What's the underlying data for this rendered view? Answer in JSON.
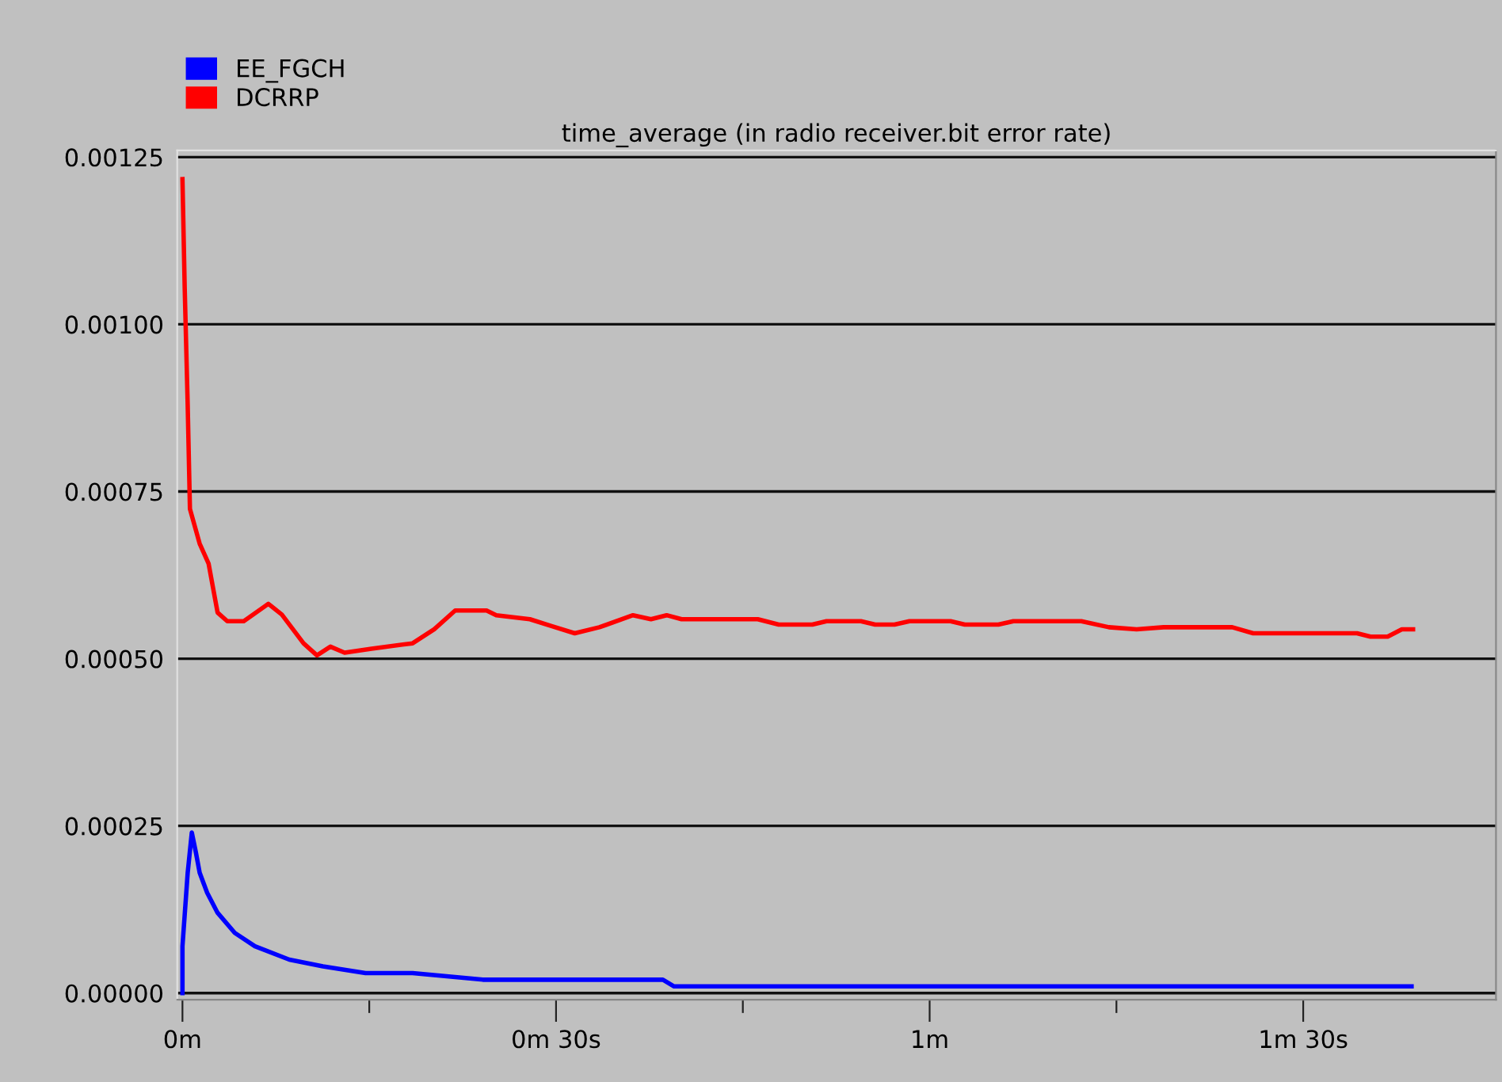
{
  "chart_data": {
    "type": "line",
    "title": "time_average (in radio receiver.bit error rate)",
    "xlim": [
      -0.007,
      1.758
    ],
    "ylim": [
      -1e-05,
      0.00126
    ],
    "xticks": [
      {
        "value": 0,
        "label": "0m"
      },
      {
        "value": 0.25,
        "label": null
      },
      {
        "value": 0.5,
        "label": "0m 30s"
      },
      {
        "value": 0.75,
        "label": null
      },
      {
        "value": 1,
        "label": "1m"
      },
      {
        "value": 1.25,
        "label": null
      },
      {
        "value": 1.5,
        "label": "1m 30s"
      }
    ],
    "yticks": [
      {
        "value": 0,
        "label": "0.00000"
      },
      {
        "value": 0.00025,
        "label": "0.00025"
      },
      {
        "value": 0.0005,
        "label": "0.00050"
      },
      {
        "value": 0.00075,
        "label": "0.00075"
      },
      {
        "value": 0.001,
        "label": "0.00100"
      },
      {
        "value": 0.00125,
        "label": "0.00125"
      }
    ],
    "grid": "y",
    "legend": "top left",
    "marker": "none",
    "line_style": "solid",
    "series": [
      {
        "name": "EE_FGCH",
        "color": "#0000ff",
        "x": [
          0,
          0,
          0.007,
          0.0125,
          0.018,
          0.023,
          0.033,
          0.047,
          0.07,
          0.097,
          0.143,
          0.188,
          0.245,
          0.308,
          0.402,
          0.493,
          0.643,
          0.658,
          0.982,
          1.0,
          1.645
        ],
        "values": [
          0,
          7e-05,
          0.00018,
          0.00024,
          0.00021,
          0.00018,
          0.00015,
          0.00012,
          9e-05,
          7e-05,
          5e-05,
          4e-05,
          3e-05,
          3e-05,
          2e-05,
          2e-05,
          2e-05,
          1e-05,
          1e-05,
          1e-05,
          1e-05
        ]
      },
      {
        "name": "DCRRP",
        "color": "#ff0000",
        "x": [
          0,
          0.003,
          0.007,
          0.01,
          0.023,
          0.035,
          0.047,
          0.06,
          0.082,
          0.115,
          0.133,
          0.162,
          0.18,
          0.198,
          0.217,
          0.253,
          0.308,
          0.337,
          0.365,
          0.407,
          0.42,
          0.465,
          0.493,
          0.525,
          0.558,
          0.603,
          0.627,
          0.648,
          0.668,
          0.77,
          0.798,
          0.843,
          0.862,
          0.908,
          0.927,
          0.953,
          0.973,
          1.028,
          1.047,
          1.092,
          1.112,
          1.203,
          1.24,
          1.277,
          1.313,
          1.405,
          1.433,
          1.572,
          1.59,
          1.613,
          1.632,
          1.647
        ],
        "values": [
          0.001217,
          0.001054,
          0.000879,
          0.000724,
          0.000672,
          0.000642,
          0.000569,
          0.000556,
          0.000556,
          0.000582,
          0.000566,
          0.000523,
          0.000505,
          0.000518,
          0.000509,
          0.000515,
          0.000523,
          0.000544,
          0.000572,
          0.000572,
          0.000565,
          0.000559,
          0.000549,
          0.000538,
          0.000547,
          0.000565,
          0.000559,
          0.000565,
          0.000559,
          0.000559,
          0.000551,
          0.000551,
          0.000556,
          0.000556,
          0.000551,
          0.000551,
          0.000556,
          0.000556,
          0.000551,
          0.000551,
          0.000556,
          0.000556,
          0.000547,
          0.000544,
          0.000547,
          0.000547,
          0.000538,
          0.000538,
          0.000533,
          0.000533,
          0.000544,
          0.000544
        ]
      }
    ]
  }
}
